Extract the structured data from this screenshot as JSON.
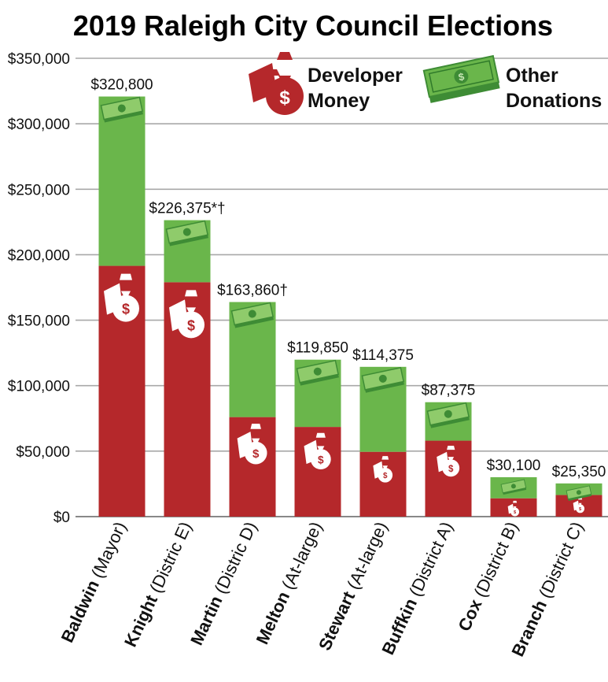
{
  "chart_data": {
    "type": "bar",
    "stacked": true,
    "title": "2019 Raleigh City Council Elections",
    "xlabel": "",
    "ylabel": "",
    "ylim": [
      0,
      350000
    ],
    "yticks": [
      0,
      50000,
      100000,
      150000,
      200000,
      250000,
      300000,
      350000
    ],
    "ytick_labels": [
      "$0",
      "$50,000",
      "$100,000",
      "$150,000",
      "$200,000",
      "$250,000",
      "$300,000",
      "$350,000"
    ],
    "grid": true,
    "legend_position": "top-right",
    "categories": [
      {
        "name": "Baldwin",
        "detail": "(Mayor)"
      },
      {
        "name": "Knight",
        "detail": "(Distric E)"
      },
      {
        "name": "Martin",
        "detail": "(Distric D)"
      },
      {
        "name": "Melton",
        "detail": "(At-large)"
      },
      {
        "name": "Stewart",
        "detail": "(At-large)"
      },
      {
        "name": "Buffkin",
        "detail": "(District A)"
      },
      {
        "name": "Cox",
        "detail": "(District B)"
      },
      {
        "name": "Branch",
        "detail": "(District C)"
      }
    ],
    "series": [
      {
        "name": "Developer Money",
        "color": "#B5282B",
        "values": [
          191500,
          179000,
          76000,
          68500,
          49500,
          58000,
          14000,
          16500
        ]
      },
      {
        "name": "Other Donations",
        "color": "#6AB64B",
        "values": [
          129300,
          47375,
          87860,
          51350,
          64875,
          29375,
          16100,
          8850
        ]
      }
    ],
    "totals": [
      320800,
      226375,
      163860,
      119850,
      114375,
      87375,
      30100,
      25350
    ],
    "total_labels": [
      "$320,800",
      "$226,375*†",
      "$163,860†",
      "$119,850",
      "$114,375",
      "$87,375",
      "$30,100",
      "$25,350"
    ],
    "legend": [
      {
        "label_line1": "Developer",
        "label_line2": "Money",
        "icon": "money-bag-icon"
      },
      {
        "label_line1": "Other",
        "label_line2": "Donations",
        "icon": "banknote-icon"
      }
    ]
  }
}
